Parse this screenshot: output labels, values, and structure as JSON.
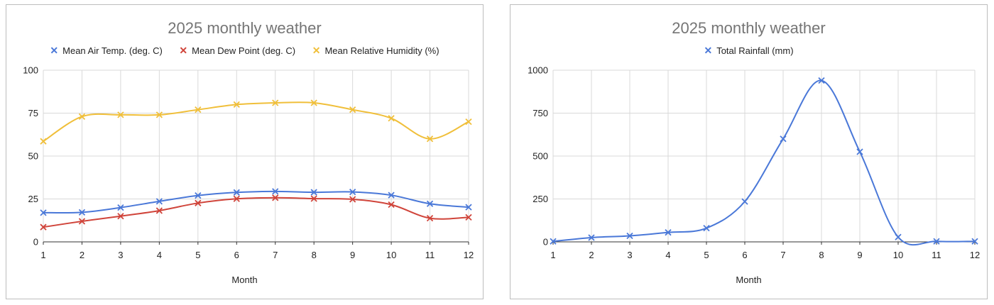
{
  "chart_data": [
    {
      "type": "line",
      "title": "2025 monthly weather",
      "xlabel": "Month",
      "ylabel": "",
      "x": [
        1,
        2,
        3,
        4,
        5,
        6,
        7,
        8,
        9,
        10,
        11,
        12
      ],
      "xlim": [
        1,
        12
      ],
      "ylim": [
        0,
        100
      ],
      "yticks": [
        0,
        25,
        50,
        75,
        100
      ],
      "grid": true,
      "legend": "top",
      "series": [
        {
          "name": "Mean Air Temp. (deg. C)",
          "color": "#4a78d8",
          "values": [
            17,
            17.2,
            20,
            23.6,
            27,
            28.8,
            29.4,
            28.9,
            29.1,
            27.2,
            22.2,
            20.2
          ]
        },
        {
          "name": "Mean Dew Point (deg. C)",
          "color": "#d0443a",
          "values": [
            8.6,
            12,
            15,
            18.2,
            22.6,
            25.1,
            25.7,
            25.2,
            24.8,
            21.7,
            13.8,
            14.3
          ]
        },
        {
          "name": "Mean Relative Humidity (%)",
          "color": "#f0bf3a",
          "values": [
            58.6,
            73,
            74,
            74,
            77,
            80,
            81,
            81,
            77,
            72,
            60,
            70
          ]
        }
      ]
    },
    {
      "type": "line",
      "title": "2025 monthly weather",
      "xlabel": "Month",
      "ylabel": "",
      "x": [
        1,
        2,
        3,
        4,
        5,
        6,
        7,
        8,
        9,
        10,
        11,
        12
      ],
      "xlim": [
        1,
        12
      ],
      "ylim": [
        0,
        1000
      ],
      "yticks": [
        0,
        250,
        500,
        750,
        1000
      ],
      "grid": true,
      "legend": "top",
      "series": [
        {
          "name": "Total Rainfall (mm)",
          "color": "#4a78d8",
          "values": [
            3,
            25,
            35,
            55,
            80,
            235,
            600,
            940,
            525,
            28,
            3,
            3
          ]
        }
      ]
    }
  ]
}
